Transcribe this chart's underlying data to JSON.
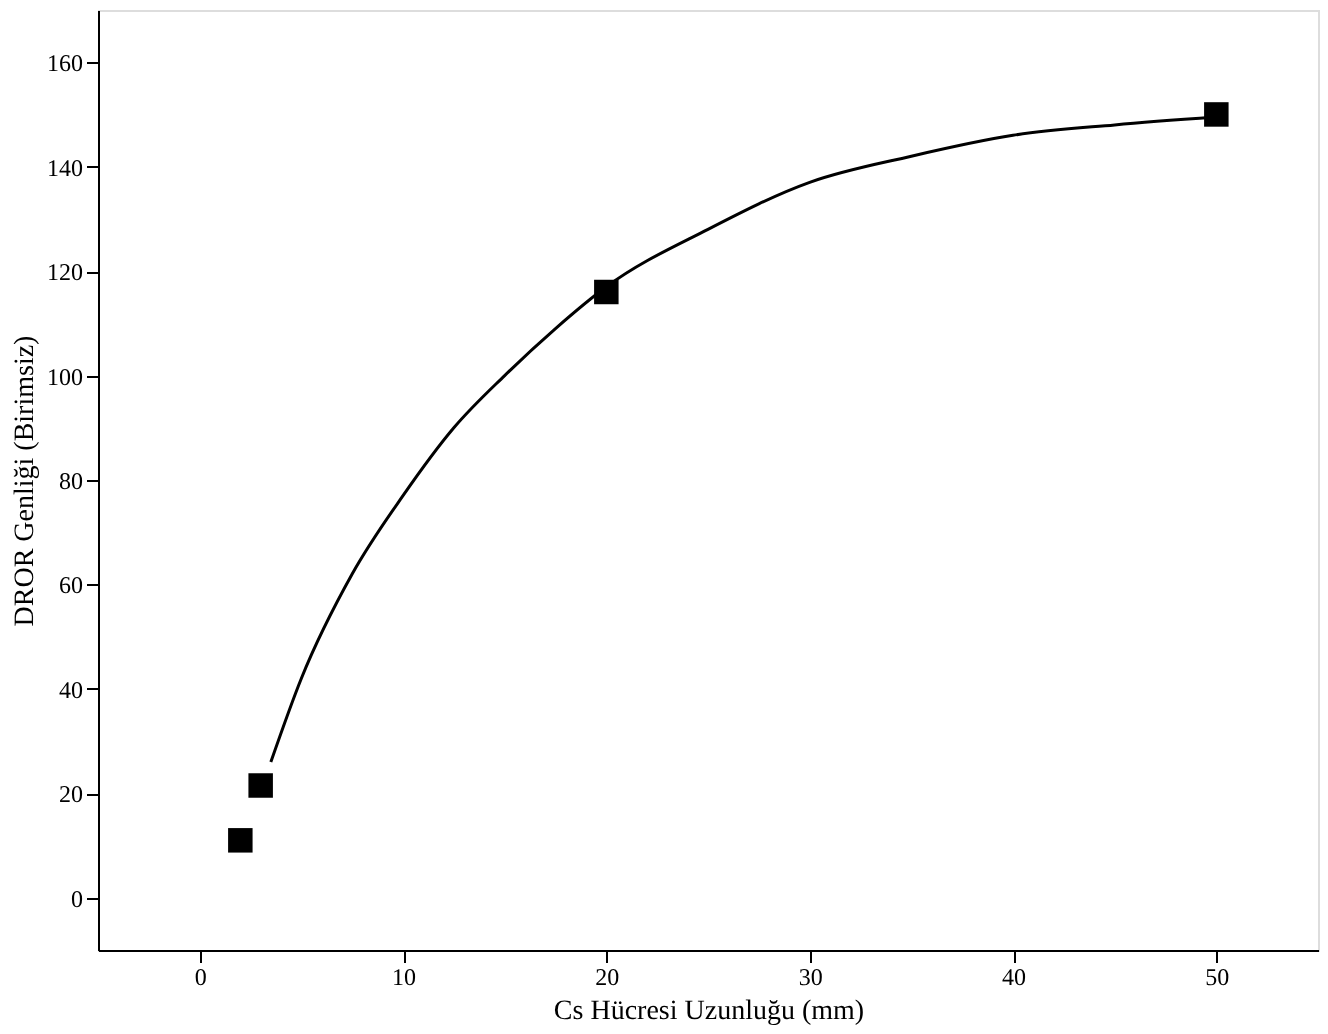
{
  "chart_data": {
    "type": "scatter",
    "xlabel": "Cs Hücresi Uzunluğu (mm)",
    "ylabel": "DROR Genliği (Birimsiz)",
    "xlim": [
      -5,
      55
    ],
    "xticks": [
      0,
      10,
      20,
      30,
      40,
      50
    ],
    "ylim": [
      -10,
      170
    ],
    "yticks": [
      0,
      20,
      40,
      60,
      80,
      100,
      120,
      140,
      160
    ],
    "grid": false,
    "series": [
      {
        "color": "#000000",
        "marker": "square",
        "x": [
          2,
          3,
          20,
          50
        ],
        "values": [
          11,
          21.5,
          116,
          150
        ]
      },
      {
        "type": "line",
        "color": "#000000",
        "marker": "none",
        "line_style": "solid",
        "x": [
          3.5,
          5,
          7.5,
          10,
          12.5,
          15,
          17.5,
          20,
          25,
          30,
          35,
          40,
          45,
          50
        ],
        "values": [
          26,
          42,
          62,
          77,
          90,
          100,
          109,
          117,
          128,
          137,
          142,
          146,
          148,
          149.5
        ]
      }
    ]
  }
}
